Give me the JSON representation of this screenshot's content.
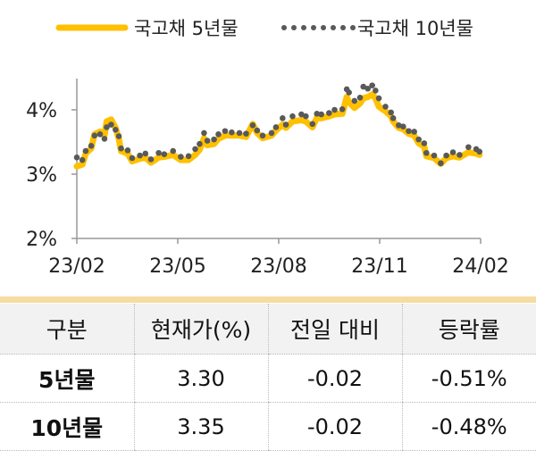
{
  "chart_data": {
    "type": "line",
    "x_ticks": [
      "23/02",
      "23/05",
      "23/08",
      "23/11",
      "24/02"
    ],
    "y_ticks": [
      "2%",
      "3%",
      "4%"
    ],
    "ylim": [
      2,
      4.6
    ],
    "xlim": [
      "2023-02-01",
      "2024-02-01"
    ],
    "grid": false,
    "legend_position": "top",
    "x": [
      "2023-02-01",
      "2023-02-06",
      "2023-02-09",
      "2023-02-14",
      "2023-02-17",
      "2023-02-22",
      "2023-02-26",
      "2023-02-28",
      "2023-03-04",
      "2023-03-08",
      "2023-03-11",
      "2023-03-13",
      "2023-03-19",
      "2023-03-23",
      "2023-03-30",
      "2023-04-04",
      "2023-04-09",
      "2023-04-16",
      "2023-04-21",
      "2023-04-29",
      "2023-05-06",
      "2023-05-13",
      "2023-05-19",
      "2023-05-23",
      "2023-05-27",
      "2023-05-30",
      "2023-06-05",
      "2023-06-09",
      "2023-06-15",
      "2023-06-21",
      "2023-06-28",
      "2023-07-04",
      "2023-07-10",
      "2023-07-14",
      "2023-07-19",
      "2023-07-27",
      "2023-07-31",
      "2023-08-06",
      "2023-08-09",
      "2023-08-15",
      "2023-08-23",
      "2023-08-27",
      "2023-09-02",
      "2023-09-06",
      "2023-09-10",
      "2023-09-17",
      "2023-09-22",
      "2023-09-29",
      "2023-10-03",
      "2023-10-05",
      "2023-10-10",
      "2023-10-15",
      "2023-10-18",
      "2023-10-22",
      "2023-10-26",
      "2023-10-29",
      "2023-11-01",
      "2023-11-07",
      "2023-11-12",
      "2023-11-14",
      "2023-11-19",
      "2023-11-23",
      "2023-11-28",
      "2023-12-03",
      "2023-12-07",
      "2023-12-12",
      "2023-12-14",
      "2023-12-21",
      "2023-12-27",
      "2024-01-01",
      "2024-01-07",
      "2024-01-13",
      "2024-01-21",
      "2024-01-28",
      "2024-01-31"
    ],
    "series": [
      {
        "name": "국고채 5년물",
        "color": "#ffc000",
        "style": "solid",
        "values": [
          3.12,
          3.15,
          3.32,
          3.4,
          3.62,
          3.66,
          3.6,
          3.82,
          3.85,
          3.72,
          3.55,
          3.36,
          3.32,
          3.2,
          3.24,
          3.26,
          3.18,
          3.26,
          3.27,
          3.3,
          3.22,
          3.22,
          3.3,
          3.38,
          3.56,
          3.45,
          3.47,
          3.55,
          3.6,
          3.6,
          3.6,
          3.58,
          3.78,
          3.64,
          3.56,
          3.6,
          3.68,
          3.77,
          3.72,
          3.82,
          3.84,
          3.82,
          3.73,
          3.88,
          3.87,
          3.9,
          3.93,
          3.94,
          4.2,
          4.12,
          4.03,
          4.1,
          4.18,
          4.2,
          4.24,
          4.18,
          4.05,
          3.98,
          3.9,
          3.82,
          3.72,
          3.7,
          3.63,
          3.6,
          3.48,
          3.43,
          3.28,
          3.25,
          3.16,
          3.25,
          3.28,
          3.26,
          3.34,
          3.32,
          3.3
        ]
      },
      {
        "name": "국고채 10년물",
        "color": "#595959",
        "style": "dotted",
        "values": [
          3.26,
          3.22,
          3.36,
          3.44,
          3.6,
          3.62,
          3.55,
          3.73,
          3.77,
          3.69,
          3.59,
          3.4,
          3.37,
          3.25,
          3.29,
          3.32,
          3.23,
          3.33,
          3.31,
          3.36,
          3.27,
          3.28,
          3.39,
          3.47,
          3.64,
          3.52,
          3.54,
          3.62,
          3.67,
          3.65,
          3.64,
          3.63,
          3.76,
          3.68,
          3.6,
          3.64,
          3.73,
          3.87,
          3.77,
          3.9,
          3.93,
          3.9,
          3.78,
          3.94,
          3.93,
          3.95,
          4.0,
          4.01,
          4.32,
          4.27,
          4.14,
          4.19,
          4.36,
          4.33,
          4.38,
          4.3,
          4.18,
          4.05,
          3.96,
          3.87,
          3.76,
          3.74,
          3.67,
          3.66,
          3.54,
          3.48,
          3.33,
          3.29,
          3.17,
          3.29,
          3.34,
          3.3,
          3.42,
          3.39,
          3.35
        ]
      }
    ]
  },
  "table": {
    "headers": [
      "구분",
      "현재가(%)",
      "전일 대비",
      "등락률"
    ],
    "rows": [
      [
        "5년물",
        "3.30",
        "-0.02",
        "-0.51%"
      ],
      [
        "10년물",
        "3.35",
        "-0.02",
        "-0.48%"
      ]
    ],
    "band_color": "#f6dca0",
    "header_bg": "#f2f2f2"
  }
}
